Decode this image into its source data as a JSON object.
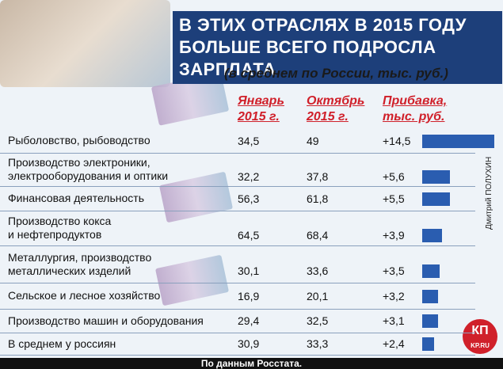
{
  "header": {
    "title_lines": [
      "В ЭТИХ ОТРАСЛЯХ В 2015 ГОДУ",
      "БОЛЬШЕ ВСЕГО ПОДРОСЛА ЗАРПЛАТА"
    ],
    "subtitle": "(в среднем по России, тыс. руб.)"
  },
  "table": {
    "columns": [
      [
        "Январь",
        "2015 г."
      ],
      [
        "Октябрь",
        "2015 г."
      ],
      [
        "Прибавка,",
        "тыс. руб."
      ]
    ],
    "bar_color": "#2a5db0",
    "rows": [
      {
        "label": [
          "Рыболовство, рыбоводство"
        ],
        "jan": "34,5",
        "oct": "49",
        "increase": 14.5,
        "increase_label": "+14,5"
      },
      {
        "label": [
          "Производство электроники,",
          "электрооборудования и оптики"
        ],
        "jan": "32,2",
        "oct": "37,8",
        "increase": 5.6,
        "increase_label": "+5,6"
      },
      {
        "label": [
          "Финансовая деятельность"
        ],
        "jan": "56,3",
        "oct": "61,8",
        "increase": 5.5,
        "increase_label": "+5,5"
      },
      {
        "label": [
          "Производство кокса",
          "и нефтепродуктов"
        ],
        "jan": "64,5",
        "oct": "68,4",
        "increase": 3.9,
        "increase_label": "+3,9"
      },
      {
        "label": [
          "Металлургия, производство",
          "металлических изделий"
        ],
        "jan": "30,1",
        "oct": "33,6",
        "increase": 3.5,
        "increase_label": "+3,5"
      },
      {
        "label": [
          "Сельское и лесное хозяйство"
        ],
        "jan": "16,9",
        "oct": "20,1",
        "increase": 3.2,
        "increase_label": "+3,2"
      },
      {
        "label": [
          "Производство машин и оборудования"
        ],
        "jan": "29,4",
        "oct": "32,5",
        "increase": 3.1,
        "increase_label": "+3,1"
      },
      {
        "label": [
          "В среднем у россиян"
        ],
        "jan": "30,9",
        "oct": "33,3",
        "increase": 2.4,
        "increase_label": "+2,4"
      }
    ]
  },
  "footer": {
    "source": "По данным Росстата.",
    "credit": "Дмитрий ПОЛУХИН",
    "logo": "КП",
    "logo_sub": "KP.RU"
  }
}
